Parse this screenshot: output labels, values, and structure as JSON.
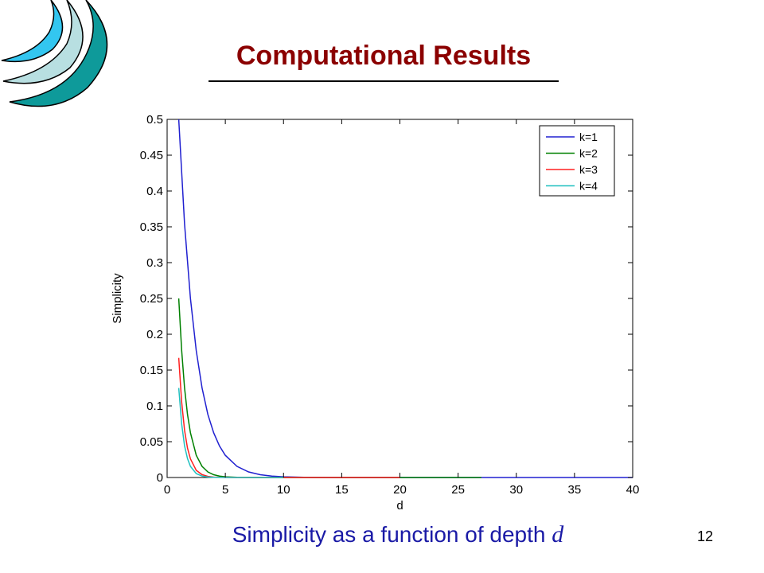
{
  "slide": {
    "title": "Computational Results",
    "caption_text": "Simplicity as a function of depth ",
    "caption_var": "d",
    "page_number": "12"
  },
  "colors": {
    "title": "#8b0000",
    "caption": "#1a1aa6",
    "logo_outer": "#0e9a9a",
    "logo_middle": "#b8dfe1",
    "logo_inner": "#33c6f0"
  },
  "chart_data": {
    "type": "line",
    "title": "",
    "xlabel": "d",
    "ylabel": "Simplicity",
    "xlim": [
      0,
      40
    ],
    "ylim": [
      0,
      0.5
    ],
    "x_ticks": [
      0,
      5,
      10,
      15,
      20,
      25,
      30,
      35,
      40
    ],
    "y_ticks": [
      0,
      0.05,
      0.1,
      0.15,
      0.2,
      0.25,
      0.3,
      0.35,
      0.4,
      0.45,
      0.5
    ],
    "legend_position": "top-right",
    "grid": false,
    "series": [
      {
        "name": "k=1",
        "color": "#2020d0",
        "x": [
          1,
          1.5,
          2,
          2.5,
          3,
          3.5,
          4,
          4.5,
          5,
          6,
          7,
          8,
          9,
          10,
          12,
          15,
          20,
          25,
          30,
          35,
          40
        ],
        "y": [
          0.5,
          0.354,
          0.25,
          0.177,
          0.125,
          0.088,
          0.0625,
          0.044,
          0.031,
          0.0156,
          0.0078,
          0.0039,
          0.002,
          0.001,
          0.0002,
          3e-05,
          0,
          0,
          0,
          0,
          0
        ]
      },
      {
        "name": "k=2",
        "color": "#008000",
        "x": [
          1,
          1.25,
          1.5,
          1.75,
          2,
          2.5,
          3,
          3.5,
          4,
          4.5,
          5,
          6,
          8,
          10,
          15,
          20,
          27
        ],
        "y": [
          0.25,
          0.177,
          0.125,
          0.088,
          0.0625,
          0.031,
          0.0156,
          0.0078,
          0.0039,
          0.002,
          0.001,
          0.0002,
          2e-05,
          0,
          0,
          0,
          0
        ]
      },
      {
        "name": "k=3",
        "color": "#ff2020",
        "x": [
          1,
          1.25,
          1.5,
          1.75,
          2,
          2.5,
          3,
          3.5,
          4,
          5,
          6,
          8,
          10,
          20
        ],
        "y": [
          0.167,
          0.105,
          0.066,
          0.041,
          0.026,
          0.01,
          0.004,
          0.0016,
          0.0006,
          0.0001,
          2e-05,
          0,
          0,
          0
        ]
      },
      {
        "name": "k=4",
        "color": "#20c0c0",
        "x": [
          1,
          1.25,
          1.5,
          1.75,
          2,
          2.5,
          3,
          3.5,
          4,
          5,
          6,
          8,
          10
        ],
        "y": [
          0.125,
          0.0744,
          0.0442,
          0.0263,
          0.0156,
          0.0055,
          0.002,
          0.0007,
          0.00024,
          3e-05,
          0,
          0,
          0
        ]
      }
    ]
  }
}
